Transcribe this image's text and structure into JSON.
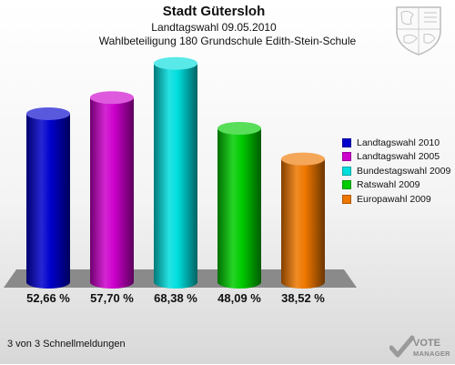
{
  "header": {
    "title": "Stadt Gütersloh",
    "subtitle": "Landtagswahl 09.05.2010",
    "subtitle2": "Wahlbeteiligung 180 Grundschule Edith-Stein-Schule"
  },
  "chart_data": {
    "type": "bar",
    "style": "3d-cylinder",
    "categories": [
      "Landtagswahl 2010",
      "Landtagswahl 2005",
      "Bundestagswahl 2009",
      "Ratswahl 2009",
      "Europawahl 2009"
    ],
    "values": [
      52.66,
      57.7,
      68.38,
      48.09,
      38.52
    ],
    "value_labels": [
      "52,66 %",
      "57,70 %",
      "68,38 %",
      "48,09 %",
      "38,52 %"
    ],
    "colors": [
      "#0000cc",
      "#cc00cc",
      "#00dddd",
      "#00cc00",
      "#ee7700"
    ],
    "ylim": [
      0,
      70
    ],
    "grid": false,
    "legend_position": "right"
  },
  "legend": {
    "items": [
      {
        "label": "Landtagswahl 2010",
        "color": "#0000cc"
      },
      {
        "label": "Landtagswahl 2005",
        "color": "#cc00cc"
      },
      {
        "label": "Bundestagswahl 2009",
        "color": "#00dddd"
      },
      {
        "label": "Ratswahl 2009",
        "color": "#00cc00"
      },
      {
        "label": "Europawahl 2009",
        "color": "#ee7700"
      }
    ]
  },
  "footer": {
    "text": "3 von 3 Schnellmeldungen"
  },
  "branding": {
    "line1": "VOTE",
    "line2": "MANAGER",
    "crest_icon": "coat-of-arms-icon",
    "logo_icon": "checkmark-icon"
  }
}
